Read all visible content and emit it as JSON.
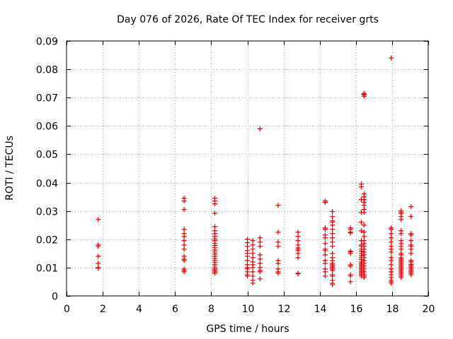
{
  "chart_data": {
    "type": "scatter",
    "title": "Day 076 of 2026, Rate Of TEC Index for receiver grts",
    "xlabel": "GPS time / hours",
    "ylabel": "ROTI / TECUs",
    "xlim": [
      0,
      20
    ],
    "ylim": [
      0,
      0.09
    ],
    "xticks": [
      0,
      2,
      4,
      6,
      8,
      10,
      12,
      14,
      16,
      18,
      20
    ],
    "yticks": [
      0,
      0.01,
      0.02,
      0.03,
      0.04,
      0.05,
      0.06,
      0.07,
      0.08,
      0.09
    ],
    "grid": true,
    "marker": "+",
    "color": "#dd0000",
    "series": [
      {
        "name": "ROTI",
        "points": [
          [
            1.75,
            0.027
          ],
          [
            1.75,
            0.018
          ],
          [
            1.75,
            0.0175
          ],
          [
            1.75,
            0.014
          ],
          [
            1.75,
            0.0115
          ],
          [
            1.75,
            0.01
          ],
          [
            1.75,
            0.0098
          ],
          [
            6.5,
            0.0345
          ],
          [
            6.5,
            0.0335
          ],
          [
            6.5,
            0.0305
          ],
          [
            6.5,
            0.0235
          ],
          [
            6.5,
            0.022
          ],
          [
            6.5,
            0.021
          ],
          [
            6.5,
            0.0195
          ],
          [
            6.5,
            0.018
          ],
          [
            6.5,
            0.0165
          ],
          [
            6.5,
            0.014
          ],
          [
            6.5,
            0.013
          ],
          [
            6.5,
            0.0125
          ],
          [
            6.5,
            0.0095
          ],
          [
            6.5,
            0.009
          ],
          [
            6.5,
            0.0085
          ],
          [
            8.2,
            0.0345
          ],
          [
            8.2,
            0.0335
          ],
          [
            8.2,
            0.0325
          ],
          [
            8.2,
            0.0292
          ],
          [
            8.2,
            0.0245
          ],
          [
            8.2,
            0.023
          ],
          [
            8.2,
            0.022
          ],
          [
            8.2,
            0.021
          ],
          [
            8.2,
            0.0202
          ],
          [
            8.2,
            0.0195
          ],
          [
            8.2,
            0.0185
          ],
          [
            8.2,
            0.0178
          ],
          [
            8.2,
            0.017
          ],
          [
            8.2,
            0.0162
          ],
          [
            8.2,
            0.0155
          ],
          [
            8.2,
            0.0148
          ],
          [
            8.2,
            0.014
          ],
          [
            8.2,
            0.0132
          ],
          [
            8.2,
            0.0125
          ],
          [
            8.2,
            0.0118
          ],
          [
            8.2,
            0.011
          ],
          [
            8.2,
            0.0102
          ],
          [
            8.2,
            0.0095
          ],
          [
            8.2,
            0.009
          ],
          [
            8.2,
            0.0085
          ],
          [
            8.2,
            0.008
          ],
          [
            10.0,
            0.02
          ],
          [
            10.0,
            0.0188
          ],
          [
            10.0,
            0.0175
          ],
          [
            10.0,
            0.016
          ],
          [
            10.0,
            0.015
          ],
          [
            10.0,
            0.014
          ],
          [
            10.0,
            0.0125
          ],
          [
            10.0,
            0.011
          ],
          [
            10.0,
            0.01
          ],
          [
            10.0,
            0.0095
          ],
          [
            10.0,
            0.0085
          ],
          [
            10.0,
            0.0075
          ],
          [
            10.0,
            0.007
          ],
          [
            10.3,
            0.0195
          ],
          [
            10.3,
            0.018
          ],
          [
            10.3,
            0.0165
          ],
          [
            10.3,
            0.015
          ],
          [
            10.3,
            0.0135
          ],
          [
            10.3,
            0.012
          ],
          [
            10.3,
            0.011
          ],
          [
            10.3,
            0.01
          ],
          [
            10.3,
            0.0085
          ],
          [
            10.3,
            0.007
          ],
          [
            10.3,
            0.0055
          ],
          [
            10.3,
            0.0045
          ],
          [
            10.7,
            0.059
          ],
          [
            10.7,
            0.0205
          ],
          [
            10.7,
            0.019
          ],
          [
            10.7,
            0.0175
          ],
          [
            10.7,
            0.0145
          ],
          [
            10.7,
            0.013
          ],
          [
            10.7,
            0.0115
          ],
          [
            10.7,
            0.01
          ],
          [
            10.7,
            0.009
          ],
          [
            10.7,
            0.0085
          ],
          [
            10.7,
            0.006
          ],
          [
            11.7,
            0.032
          ],
          [
            11.7,
            0.0225
          ],
          [
            11.7,
            0.019
          ],
          [
            11.7,
            0.0175
          ],
          [
            11.7,
            0.0125
          ],
          [
            11.7,
            0.0115
          ],
          [
            11.7,
            0.0095
          ],
          [
            11.7,
            0.0085
          ],
          [
            11.7,
            0.008
          ],
          [
            12.8,
            0.0225
          ],
          [
            12.8,
            0.021
          ],
          [
            12.8,
            0.0195
          ],
          [
            12.8,
            0.018
          ],
          [
            12.8,
            0.017
          ],
          [
            12.8,
            0.0165
          ],
          [
            12.8,
            0.016
          ],
          [
            12.8,
            0.015
          ],
          [
            12.8,
            0.0135
          ],
          [
            12.8,
            0.008
          ],
          [
            12.8,
            0.0078
          ],
          [
            14.3,
            0.0335
          ],
          [
            14.3,
            0.033
          ],
          [
            14.3,
            0.024
          ],
          [
            14.3,
            0.0235
          ],
          [
            14.3,
            0.0215
          ],
          [
            14.3,
            0.0205
          ],
          [
            14.3,
            0.0185
          ],
          [
            14.3,
            0.0165
          ],
          [
            14.3,
            0.016
          ],
          [
            14.3,
            0.0145
          ],
          [
            14.3,
            0.0125
          ],
          [
            14.3,
            0.0115
          ],
          [
            14.3,
            0.0095
          ],
          [
            14.3,
            0.0085
          ],
          [
            14.3,
            0.007
          ],
          [
            14.7,
            0.0298
          ],
          [
            14.7,
            0.028
          ],
          [
            14.7,
            0.0265
          ],
          [
            14.7,
            0.026
          ],
          [
            14.7,
            0.025
          ],
          [
            14.7,
            0.0235
          ],
          [
            14.7,
            0.022
          ],
          [
            14.7,
            0.0205
          ],
          [
            14.7,
            0.019
          ],
          [
            14.7,
            0.0175
          ],
          [
            14.7,
            0.015
          ],
          [
            14.7,
            0.0135
          ],
          [
            14.7,
            0.0125
          ],
          [
            14.7,
            0.0115
          ],
          [
            14.7,
            0.011
          ],
          [
            14.7,
            0.0105
          ],
          [
            14.7,
            0.01
          ],
          [
            14.7,
            0.0095
          ],
          [
            14.7,
            0.009
          ],
          [
            14.7,
            0.0075
          ],
          [
            14.7,
            0.007
          ],
          [
            14.7,
            0.0055
          ],
          [
            14.7,
            0.0045
          ],
          [
            14.7,
            0.004
          ],
          [
            15.7,
            0.024
          ],
          [
            15.7,
            0.0235
          ],
          [
            15.7,
            0.0225
          ],
          [
            15.7,
            0.0222
          ],
          [
            15.7,
            0.0158
          ],
          [
            15.7,
            0.0155
          ],
          [
            15.7,
            0.015
          ],
          [
            15.7,
            0.011
          ],
          [
            15.7,
            0.0105
          ],
          [
            15.7,
            0.0075
          ],
          [
            15.7,
            0.007
          ],
          [
            15.7,
            0.005
          ],
          [
            16.3,
            0.0395
          ],
          [
            16.3,
            0.0385
          ],
          [
            16.3,
            0.034
          ],
          [
            16.3,
            0.0295
          ],
          [
            16.3,
            0.026
          ],
          [
            16.3,
            0.023
          ],
          [
            16.3,
            0.0195
          ],
          [
            16.3,
            0.018
          ],
          [
            16.3,
            0.0175
          ],
          [
            16.3,
            0.0165
          ],
          [
            16.3,
            0.0158
          ],
          [
            16.3,
            0.015
          ],
          [
            16.3,
            0.0142
          ],
          [
            16.3,
            0.0135
          ],
          [
            16.3,
            0.0128
          ],
          [
            16.3,
            0.012
          ],
          [
            16.3,
            0.0115
          ],
          [
            16.3,
            0.011
          ],
          [
            16.3,
            0.0105
          ],
          [
            16.3,
            0.01
          ],
          [
            16.3,
            0.0095
          ],
          [
            16.3,
            0.009
          ],
          [
            16.3,
            0.0085
          ],
          [
            16.3,
            0.008
          ],
          [
            16.3,
            0.0075
          ],
          [
            16.3,
            0.007
          ],
          [
            16.45,
            0.0715
          ],
          [
            16.45,
            0.0712
          ],
          [
            16.45,
            0.071
          ],
          [
            16.45,
            0.0705
          ],
          [
            16.45,
            0.036
          ],
          [
            16.45,
            0.035
          ],
          [
            16.45,
            0.034
          ],
          [
            16.45,
            0.033
          ],
          [
            16.45,
            0.032
          ],
          [
            16.45,
            0.0305
          ],
          [
            16.45,
            0.0295
          ],
          [
            16.45,
            0.025
          ],
          [
            16.45,
            0.0225
          ],
          [
            16.45,
            0.021
          ],
          [
            16.45,
            0.0195
          ],
          [
            16.45,
            0.0185
          ],
          [
            16.45,
            0.0175
          ],
          [
            16.45,
            0.0165
          ],
          [
            16.45,
            0.0155
          ],
          [
            16.45,
            0.0145
          ],
          [
            16.45,
            0.0135
          ],
          [
            16.45,
            0.0125
          ],
          [
            16.45,
            0.0115
          ],
          [
            16.45,
            0.0105
          ],
          [
            16.45,
            0.0095
          ],
          [
            16.45,
            0.0085
          ],
          [
            16.45,
            0.0075
          ],
          [
            16.45,
            0.007
          ],
          [
            16.45,
            0.0065
          ],
          [
            17.95,
            0.084
          ],
          [
            17.95,
            0.024
          ],
          [
            17.95,
            0.0235
          ],
          [
            17.95,
            0.022
          ],
          [
            17.95,
            0.0205
          ],
          [
            17.95,
            0.019
          ],
          [
            17.95,
            0.0175
          ],
          [
            17.95,
            0.0165
          ],
          [
            17.95,
            0.0155
          ],
          [
            17.95,
            0.0135
          ],
          [
            17.95,
            0.0125
          ],
          [
            17.95,
            0.011
          ],
          [
            17.95,
            0.0095
          ],
          [
            17.95,
            0.0085
          ],
          [
            17.95,
            0.0075
          ],
          [
            17.95,
            0.0065
          ],
          [
            17.95,
            0.0055
          ],
          [
            17.95,
            0.005
          ],
          [
            17.95,
            0.0045
          ],
          [
            18.5,
            0.03
          ],
          [
            18.5,
            0.0295
          ],
          [
            18.5,
            0.029
          ],
          [
            18.5,
            0.028
          ],
          [
            18.5,
            0.027
          ],
          [
            18.5,
            0.023
          ],
          [
            18.5,
            0.022
          ],
          [
            18.5,
            0.0195
          ],
          [
            18.5,
            0.0185
          ],
          [
            18.5,
            0.0175
          ],
          [
            18.5,
            0.0165
          ],
          [
            18.5,
            0.015
          ],
          [
            18.5,
            0.0145
          ],
          [
            18.5,
            0.0135
          ],
          [
            18.5,
            0.013
          ],
          [
            18.5,
            0.0125
          ],
          [
            18.5,
            0.012
          ],
          [
            18.5,
            0.0115
          ],
          [
            18.5,
            0.011
          ],
          [
            18.5,
            0.0105
          ],
          [
            18.5,
            0.01
          ],
          [
            18.5,
            0.0095
          ],
          [
            18.5,
            0.009
          ],
          [
            18.5,
            0.0085
          ],
          [
            18.5,
            0.008
          ],
          [
            18.5,
            0.0075
          ],
          [
            18.5,
            0.007
          ],
          [
            18.5,
            0.0065
          ],
          [
            19.05,
            0.0315
          ],
          [
            19.05,
            0.028
          ],
          [
            19.05,
            0.022
          ],
          [
            19.05,
            0.0215
          ],
          [
            19.05,
            0.0195
          ],
          [
            19.05,
            0.018
          ],
          [
            19.05,
            0.0175
          ],
          [
            19.05,
            0.0165
          ],
          [
            19.05,
            0.015
          ],
          [
            19.05,
            0.0125
          ],
          [
            19.05,
            0.012
          ],
          [
            19.05,
            0.0112
          ],
          [
            19.05,
            0.011
          ],
          [
            19.05,
            0.0105
          ],
          [
            19.05,
            0.01
          ],
          [
            19.05,
            0.0095
          ],
          [
            19.05,
            0.009
          ],
          [
            19.05,
            0.0085
          ],
          [
            19.05,
            0.008
          ],
          [
            19.05,
            0.0075
          ]
        ]
      }
    ]
  }
}
